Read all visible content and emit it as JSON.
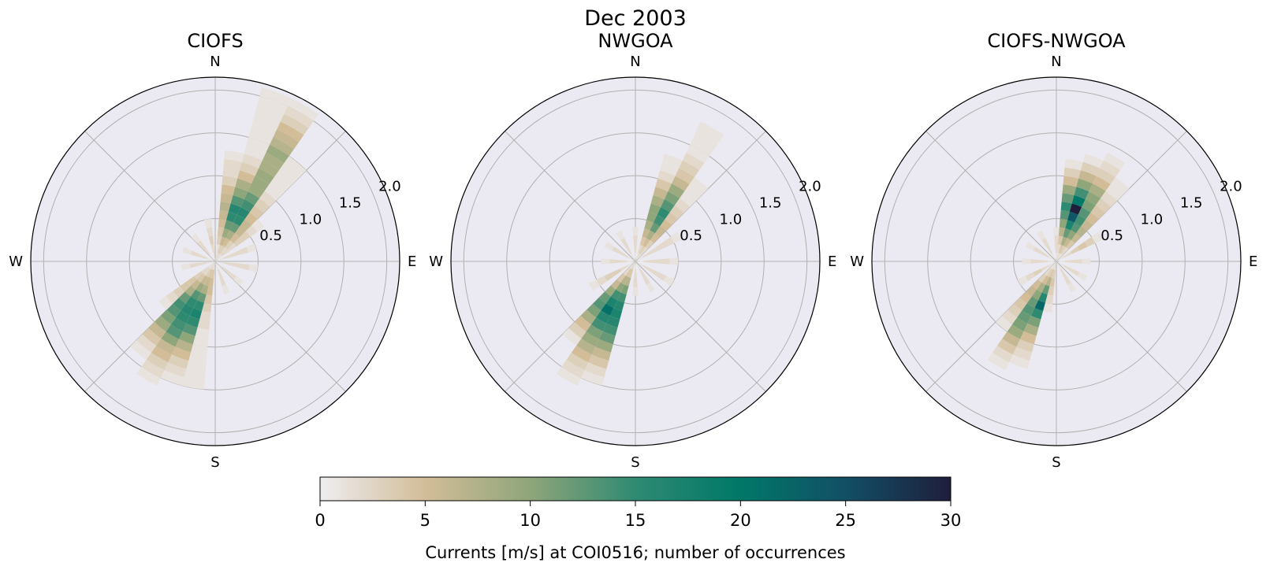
{
  "figure": {
    "title": "Dec 2003"
  },
  "colorbar": {
    "label": "Currents [m/s] at COI0516; number of occurrences",
    "ticks": [
      "0",
      "5",
      "10",
      "15",
      "20",
      "25",
      "30"
    ],
    "min": 0,
    "max": 30,
    "colormap": [
      "#eeedf0",
      "#d2bd98",
      "#8fa57a",
      "#2f8a72",
      "#007868",
      "#124f66",
      "#1f1e3c"
    ]
  },
  "axes_style": {
    "background": "#ebeaf2",
    "grid": true,
    "grid_color": "#b0b0b0"
  },
  "chart_data": [
    {
      "type": "polar-histogram",
      "title": "CIOFS",
      "direction_labels": [
        "N",
        "E",
        "S",
        "W"
      ],
      "radial_ticks": [
        "0.5",
        "1.0",
        "1.5",
        "2.0"
      ],
      "rlim": [
        0,
        2.15
      ],
      "direction_bin_width_deg": 10,
      "speed_bin_width": 0.1,
      "series": [
        {
          "dir": 10,
          "counts": [
            1,
            1,
            3,
            4,
            5,
            6,
            7,
            6,
            5,
            3,
            2,
            2,
            1
          ]
        },
        {
          "dir": 20,
          "counts": [
            2,
            3,
            6,
            9,
            12,
            15,
            16,
            13,
            10,
            8,
            5,
            3,
            2,
            1,
            1,
            1,
            1,
            1,
            1,
            1,
            1
          ]
        },
        {
          "dir": 30,
          "counts": [
            2,
            3,
            5,
            8,
            12,
            15,
            16,
            14,
            12,
            9,
            9,
            9,
            8,
            8,
            9,
            7,
            6,
            5,
            3,
            2,
            1
          ]
        },
        {
          "dir": 40,
          "counts": [
            1,
            2,
            3,
            5,
            6,
            6,
            5,
            4,
            3,
            2,
            1,
            1,
            1,
            1,
            1
          ]
        },
        {
          "dir": 50,
          "counts": [
            1,
            2,
            2,
            3,
            3,
            2,
            1
          ]
        },
        {
          "dir": 70,
          "counts": [
            1,
            2,
            2,
            2,
            1
          ]
        },
        {
          "dir": 100,
          "counts": [
            1,
            2,
            2,
            2,
            1
          ]
        },
        {
          "dir": 130,
          "counts": [
            1,
            2,
            2,
            1
          ]
        },
        {
          "dir": 160,
          "counts": [
            1,
            2,
            2,
            1
          ]
        },
        {
          "dir": 190,
          "counts": [
            1,
            4,
            5,
            5,
            4,
            3,
            2,
            2,
            1,
            1,
            1,
            1,
            1,
            1,
            1
          ]
        },
        {
          "dir": 200,
          "counts": [
            2,
            4,
            6,
            8,
            12,
            15,
            17,
            15,
            13,
            10,
            7,
            5,
            3,
            2,
            1
          ]
        },
        {
          "dir": 210,
          "counts": [
            2,
            3,
            6,
            9,
            13,
            15,
            16,
            15,
            14,
            13,
            10,
            6,
            5,
            3,
            2,
            1
          ]
        },
        {
          "dir": 220,
          "counts": [
            1,
            2,
            4,
            6,
            8,
            12,
            14,
            13,
            11,
            9,
            6,
            4,
            2,
            1
          ]
        },
        {
          "dir": 230,
          "counts": [
            1,
            2,
            3,
            4,
            4,
            3,
            2,
            1
          ]
        },
        {
          "dir": 260,
          "counts": [
            1,
            2,
            2,
            1
          ]
        },
        {
          "dir": 290,
          "counts": [
            1,
            2,
            2,
            1
          ]
        },
        {
          "dir": 320,
          "counts": [
            1,
            2,
            2,
            1
          ]
        },
        {
          "dir": 350,
          "counts": [
            1,
            2,
            3,
            2,
            1
          ]
        }
      ]
    },
    {
      "type": "polar-histogram",
      "title": "NWGOA",
      "direction_labels": [
        "N",
        "E",
        "S",
        "W"
      ],
      "radial_ticks": [
        "0.5",
        "1.0",
        "1.5",
        "2.0"
      ],
      "rlim": [
        0,
        2.15
      ],
      "direction_bin_width_deg": 10,
      "speed_bin_width": 0.1,
      "series": [
        {
          "dir": 20,
          "counts": [
            1,
            2,
            4,
            6,
            8,
            10,
            10,
            8,
            6,
            4,
            2,
            1,
            1
          ]
        },
        {
          "dir": 30,
          "counts": [
            2,
            3,
            5,
            8,
            12,
            14,
            15,
            13,
            11,
            9,
            6,
            4,
            3,
            2,
            1,
            1,
            1,
            1
          ]
        },
        {
          "dir": 40,
          "counts": [
            1,
            2,
            3,
            5,
            6,
            5,
            4,
            3,
            2,
            1,
            1,
            1
          ]
        },
        {
          "dir": 60,
          "counts": [
            1,
            2,
            2,
            2,
            2,
            1
          ]
        },
        {
          "dir": 90,
          "counts": [
            1,
            2,
            2,
            2,
            1
          ]
        },
        {
          "dir": 120,
          "counts": [
            1,
            2,
            2,
            2,
            1
          ]
        },
        {
          "dir": 150,
          "counts": [
            1,
            2,
            2,
            1
          ]
        },
        {
          "dir": 180,
          "counts": [
            1,
            2,
            2,
            1
          ]
        },
        {
          "dir": 200,
          "counts": [
            2,
            4,
            7,
            11,
            14,
            16,
            17,
            16,
            14,
            12,
            9,
            6,
            4,
            2,
            1
          ]
        },
        {
          "dir": 210,
          "counts": [
            2,
            4,
            7,
            10,
            14,
            17,
            21,
            16,
            14,
            11,
            9,
            7,
            5,
            3,
            2,
            1
          ]
        },
        {
          "dir": 220,
          "counts": [
            1,
            2,
            4,
            6,
            9,
            12,
            13,
            11,
            8,
            5,
            3,
            1
          ]
        },
        {
          "dir": 240,
          "counts": [
            1,
            2,
            3,
            3,
            2,
            1
          ]
        },
        {
          "dir": 270,
          "counts": [
            1,
            2,
            2,
            1
          ]
        },
        {
          "dir": 300,
          "counts": [
            1,
            2,
            2,
            1
          ]
        },
        {
          "dir": 330,
          "counts": [
            1,
            2,
            2,
            1
          ]
        },
        {
          "dir": 0,
          "counts": [
            1,
            2,
            2,
            1
          ]
        }
      ]
    },
    {
      "type": "polar-histogram",
      "title": "CIOFS-NWGOA",
      "direction_labels": [
        "N",
        "E",
        "S",
        "W"
      ],
      "radial_ticks": [
        "0.5",
        "1.0",
        "1.5",
        "2.0"
      ],
      "rlim": [
        0,
        2.15
      ],
      "direction_bin_width_deg": 10,
      "speed_bin_width": 0.1,
      "series": [
        {
          "dir": 10,
          "counts": [
            1,
            2,
            4,
            7,
            10,
            13,
            15,
            12,
            9,
            5,
            3,
            1
          ]
        },
        {
          "dir": 20,
          "counts": [
            2,
            4,
            8,
            12,
            17,
            24,
            30,
            20,
            14,
            10,
            6,
            3,
            1
          ]
        },
        {
          "dir": 30,
          "counts": [
            1,
            3,
            6,
            10,
            13,
            14,
            13,
            11,
            10,
            8,
            5,
            3,
            2,
            1
          ]
        },
        {
          "dir": 40,
          "counts": [
            1,
            2,
            4,
            6,
            7,
            6,
            5,
            4,
            3,
            2,
            1,
            1
          ]
        },
        {
          "dir": 60,
          "counts": [
            1,
            2,
            3,
            4,
            3,
            1
          ]
        },
        {
          "dir": 90,
          "counts": [
            1,
            2,
            2,
            1
          ]
        },
        {
          "dir": 120,
          "counts": [
            1,
            2,
            2,
            1
          ]
        },
        {
          "dir": 150,
          "counts": [
            1,
            2,
            2,
            1
          ]
        },
        {
          "dir": 190,
          "counts": [
            1,
            3,
            4,
            3,
            2,
            1
          ]
        },
        {
          "dir": 200,
          "counts": [
            2,
            4,
            7,
            12,
            16,
            22,
            15,
            11,
            8,
            5,
            3,
            2,
            1
          ]
        },
        {
          "dir": 210,
          "counts": [
            1,
            3,
            5,
            8,
            10,
            12,
            13,
            12,
            11,
            9,
            6,
            4,
            2,
            1
          ]
        },
        {
          "dir": 220,
          "counts": [
            1,
            2,
            3,
            5,
            6,
            5,
            4,
            3,
            2,
            1
          ]
        },
        {
          "dir": 240,
          "counts": [
            1,
            2,
            3,
            2,
            1
          ]
        },
        {
          "dir": 270,
          "counts": [
            1,
            2,
            2,
            1
          ]
        },
        {
          "dir": 300,
          "counts": [
            1,
            2,
            2,
            1
          ]
        },
        {
          "dir": 330,
          "counts": [
            1,
            2,
            2,
            1
          ]
        },
        {
          "dir": 0,
          "counts": [
            1,
            2,
            2,
            1
          ]
        }
      ]
    }
  ]
}
